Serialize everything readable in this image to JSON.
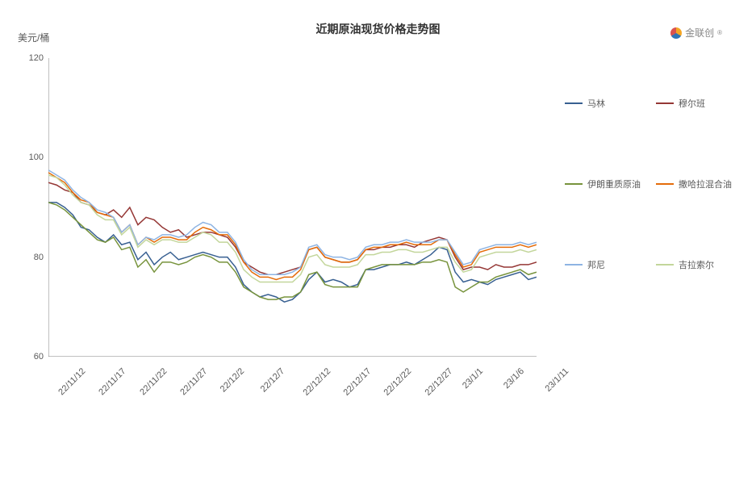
{
  "title": "近期原油现货价格走势图",
  "y_unit": "美元/桶",
  "brand": "金联创",
  "chart": {
    "type": "line",
    "background_color": "#ffffff",
    "ylim": [
      60,
      120
    ],
    "ytick_step": 20,
    "yticks": [
      60,
      80,
      100,
      120
    ],
    "x_labels": [
      "22/11/12",
      "22/11/17",
      "22/11/22",
      "22/11/27",
      "22/12/2",
      "22/12/7",
      "22/12/12",
      "22/12/17",
      "22/12/22",
      "22/12/27",
      "23/1/1",
      "23/1/6",
      "23/1/11"
    ],
    "axis_color": "#808080",
    "label_color": "#595959",
    "label_fontsize": 11,
    "title_fontsize": 14,
    "line_width": 1.5,
    "n_points": 61,
    "series": [
      {
        "name": "马林",
        "color": "#375f91",
        "data": [
          91,
          91,
          90,
          88.5,
          86,
          85.5,
          84,
          83,
          84.5,
          82.5,
          83,
          79.5,
          81,
          78.5,
          80,
          81,
          79.5,
          80,
          80.5,
          81,
          80.5,
          80,
          80,
          78,
          74.5,
          73,
          72,
          72.5,
          72,
          71,
          71.5,
          73,
          75.5,
          77,
          75,
          75.5,
          75,
          74,
          74.5,
          77.5,
          77.5,
          78,
          78.5,
          78.5,
          79,
          78.5,
          79.5,
          80.5,
          82,
          81.5,
          77,
          75,
          75.5,
          75,
          74.5,
          75.5,
          76,
          76.5,
          77,
          75.5,
          76
        ]
      },
      {
        "name": "穆尔班",
        "color": "#953735",
        "data": [
          95,
          94.5,
          93.5,
          93,
          91,
          90.5,
          89,
          88.5,
          89.5,
          88,
          90,
          86.5,
          88,
          87.5,
          86,
          85,
          85.5,
          84,
          84.5,
          85,
          85,
          84.5,
          84,
          82,
          79,
          78,
          77,
          76.5,
          76.5,
          77,
          77.5,
          78,
          81.5,
          82,
          80,
          79.5,
          79,
          79,
          79.5,
          81.5,
          81.5,
          82,
          82,
          82.5,
          82.5,
          82,
          83,
          83.5,
          84,
          83.5,
          80,
          77.5,
          78,
          78,
          77.5,
          78.5,
          78,
          78,
          78.5,
          78.5,
          79
        ]
      },
      {
        "name": "伊朗重质原油",
        "color": "#77933c",
        "data": [
          91,
          90.5,
          89.5,
          88,
          86.5,
          85,
          83.5,
          83,
          84,
          81.5,
          82,
          78,
          79.5,
          77,
          79,
          79,
          78.5,
          79,
          80,
          80.5,
          80,
          79,
          79,
          77,
          74,
          73,
          72,
          71.5,
          71.5,
          72,
          72,
          73,
          76.5,
          77,
          74.5,
          74,
          74,
          74,
          74,
          77.5,
          78,
          78.5,
          78.5,
          78.5,
          78.5,
          78.5,
          79,
          79,
          79.5,
          79,
          74,
          73,
          74,
          75,
          75,
          76,
          76.5,
          77,
          77.5,
          76.5,
          77
        ]
      },
      {
        "name": "撒哈拉混合油",
        "color": "#e46c0a",
        "data": [
          97,
          96,
          95,
          93,
          91.5,
          91,
          89,
          88.5,
          88,
          85,
          86.5,
          82.5,
          84,
          83,
          84,
          84,
          83.5,
          83.5,
          85,
          86,
          85.5,
          84.5,
          84.5,
          82.5,
          79,
          77,
          76,
          76,
          75.5,
          76,
          76,
          77.5,
          81.5,
          82,
          80,
          79.5,
          79,
          79,
          79.5,
          81.5,
          82,
          82,
          82.5,
          82.5,
          83,
          82.5,
          82.5,
          82.5,
          83.5,
          83.5,
          80.5,
          78,
          78.5,
          81,
          81.5,
          82,
          82,
          82,
          82.5,
          82,
          82.5
        ]
      },
      {
        "name": "邦尼",
        "color": "#8eb4e3",
        "data": [
          97.5,
          96.5,
          95.5,
          93.5,
          92,
          91,
          89.5,
          89,
          88,
          85,
          86.5,
          82.5,
          84,
          83.5,
          84.5,
          84.5,
          84,
          84.5,
          86,
          87,
          86.5,
          85,
          85,
          83,
          79.5,
          77.5,
          76.5,
          76.5,
          76.5,
          76.5,
          77,
          78,
          82,
          82.5,
          80.5,
          80,
          80,
          79.5,
          80,
          82,
          82.5,
          82.5,
          83,
          83,
          83.5,
          83,
          83,
          83,
          83.5,
          83.5,
          81,
          78.5,
          79,
          81.5,
          82,
          82.5,
          82.5,
          82.5,
          83,
          82.5,
          83
        ]
      },
      {
        "name": "吉拉索尔",
        "color": "#c3d69b",
        "data": [
          96.5,
          96,
          94.5,
          92.5,
          91,
          90.5,
          88.5,
          87.5,
          87.5,
          84.5,
          86,
          82,
          83.5,
          82.5,
          83.5,
          83.5,
          83,
          83,
          84,
          85,
          84.5,
          83,
          83,
          81,
          77.5,
          76,
          75,
          75,
          75,
          75,
          75,
          76.5,
          80,
          80.5,
          78.5,
          78,
          78,
          78,
          78.5,
          80.5,
          80.5,
          81,
          81,
          81.5,
          81.5,
          81,
          81,
          81.5,
          82,
          82,
          79,
          77,
          77.5,
          80,
          80.5,
          81,
          81,
          81,
          81.5,
          81,
          81.5
        ]
      }
    ]
  }
}
